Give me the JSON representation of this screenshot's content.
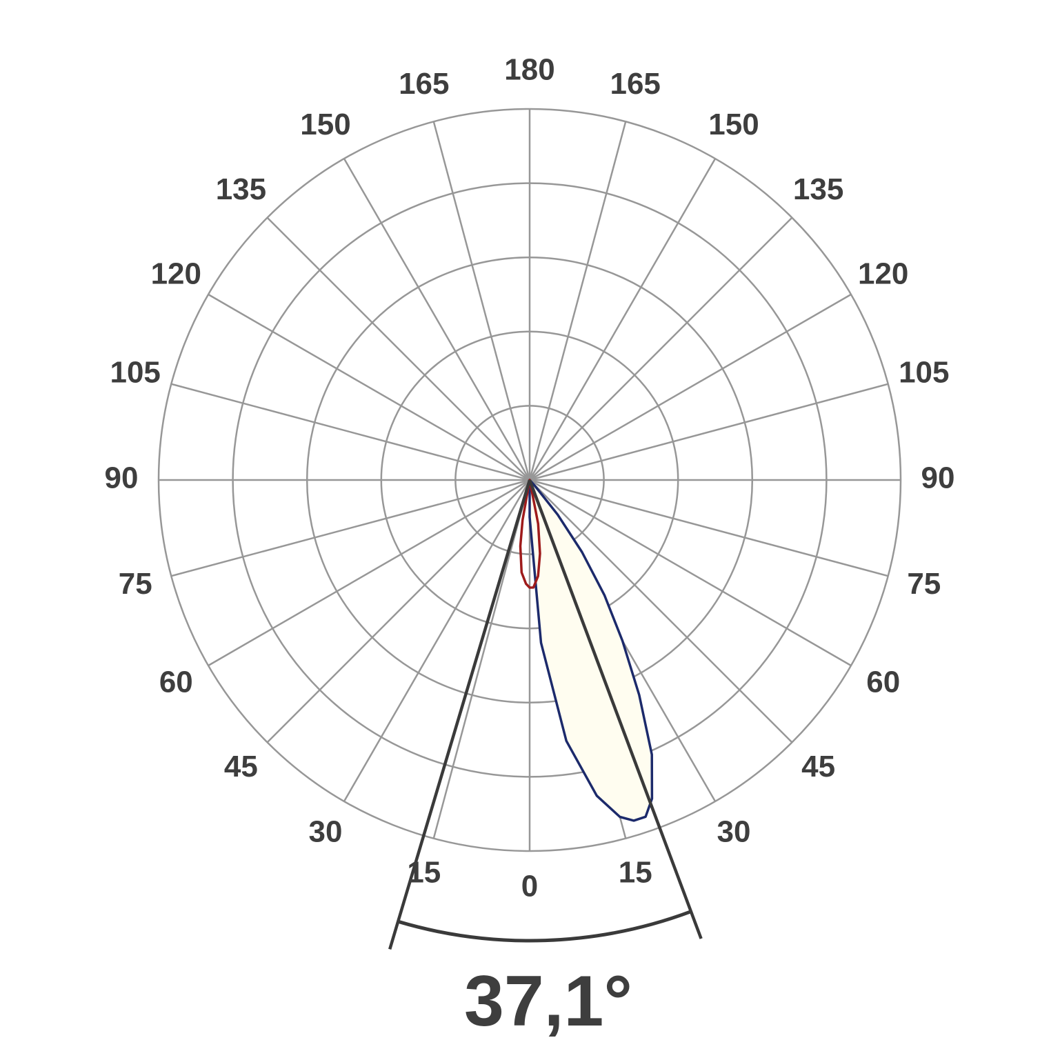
{
  "chart_data": {
    "type": "polar",
    "angle_tick_labels": {
      "left": [
        "0",
        "15",
        "30",
        "45",
        "60",
        "75",
        "90",
        "105",
        "120",
        "135",
        "150",
        "165",
        "180"
      ],
      "right": [
        "15",
        "30",
        "45",
        "60",
        "75",
        "90",
        "105",
        "120",
        "135",
        "150",
        "165"
      ]
    },
    "angle_step_deg": 15,
    "spoke_step_deg": 15,
    "ring_count": 5,
    "grid": true,
    "series": [
      {
        "color": "#1c2a6b",
        "fill": "#fffdf0",
        "points": [
          {
            "angle": 0,
            "r": 0.1
          },
          {
            "angle": 4,
            "r": 0.44
          },
          {
            "angle": 8,
            "r": 0.71
          },
          {
            "angle": 12,
            "r": 0.87
          },
          {
            "angle": 15,
            "r": 0.94
          },
          {
            "angle": 17,
            "r": 0.96
          },
          {
            "angle": 19,
            "r": 0.96
          },
          {
            "angle": 21,
            "r": 0.92
          },
          {
            "angle": 24,
            "r": 0.81
          },
          {
            "angle": 27,
            "r": 0.65
          },
          {
            "angle": 30,
            "r": 0.5
          },
          {
            "angle": 33,
            "r": 0.37
          },
          {
            "angle": 36,
            "r": 0.24
          },
          {
            "angle": 39,
            "r": 0.12
          },
          {
            "angle": 42,
            "r": 0.02
          }
        ]
      },
      {
        "color": "#9e1b1b",
        "fill": "none",
        "points": [
          {
            "angle": -12,
            "r": 0.0
          },
          {
            "angle": -10,
            "r": 0.11
          },
          {
            "angle": -8,
            "r": 0.18
          },
          {
            "angle": -5,
            "r": 0.25
          },
          {
            "angle": -2,
            "r": 0.28
          },
          {
            "angle": 0,
            "r": 0.29
          },
          {
            "angle": 2,
            "r": 0.29
          },
          {
            "angle": 5,
            "r": 0.26
          },
          {
            "angle": 8,
            "r": 0.2
          },
          {
            "angle": 11,
            "r": 0.12
          },
          {
            "angle": 14,
            "r": 0.0
          }
        ]
      }
    ],
    "beam_angle": {
      "label": "37,1°",
      "from_deg": -16.6,
      "to_deg": 20.5
    }
  }
}
